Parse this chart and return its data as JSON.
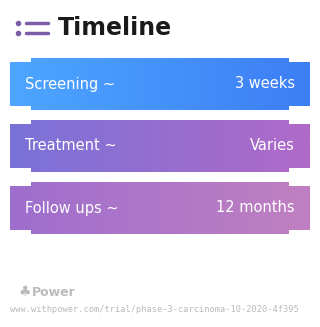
{
  "title": "Timeline",
  "background_color": "#ffffff",
  "rows": [
    {
      "label": "Screening ~",
      "value": "3 weeks",
      "color_left": "#4da6ff",
      "color_right": "#3d7ef5"
    },
    {
      "label": "Treatment ~",
      "value": "Varies",
      "color_left": "#7a72d8",
      "color_right": "#b06ac8"
    },
    {
      "label": "Follow ups ~",
      "value": "12 months",
      "color_left": "#9e6ece",
      "color_right": "#c080c0"
    }
  ],
  "footer_logo_text": "Power",
  "footer_url": "www.withpower.com/trial/phase-3-carcinoma-10-2020-4f395",
  "title_fontsize": 17,
  "row_label_fontsize": 10.5,
  "row_value_fontsize": 10.5,
  "footer_fontsize": 6.2,
  "icon_color": "#7b5ea7",
  "icon_line_color": "#7b5ea7"
}
